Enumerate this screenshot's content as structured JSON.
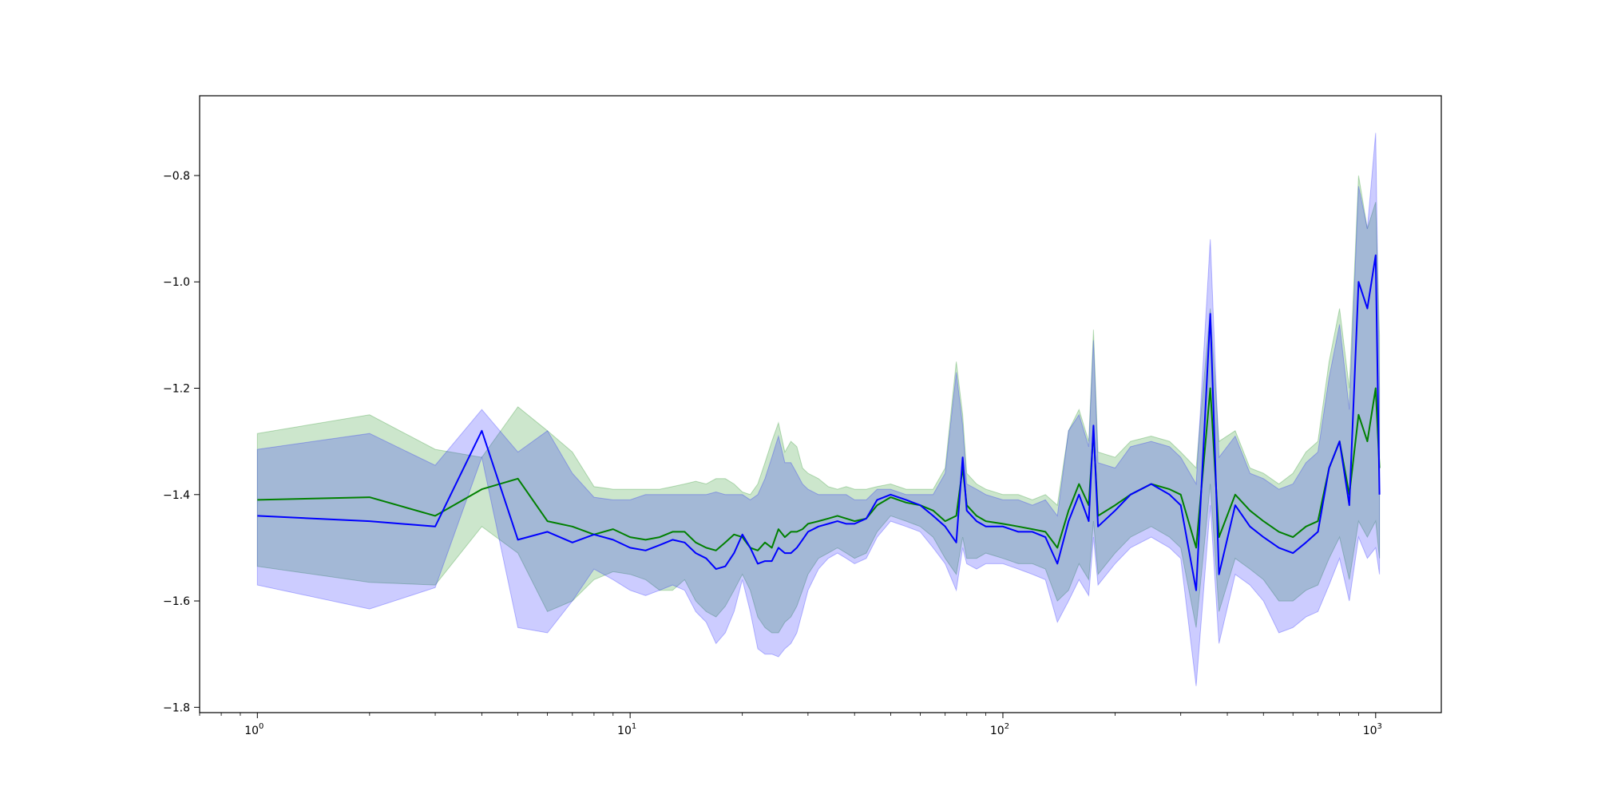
{
  "chart_data": {
    "type": "line",
    "title": "",
    "xlabel": "",
    "ylabel": "",
    "x_scale": "log",
    "xlim": [
      0.7,
      1500
    ],
    "ylim": [
      -1.81,
      -0.65
    ],
    "grid": false,
    "legend": "none",
    "x_ticks": [
      {
        "value": 1,
        "base": "10",
        "exp": "0"
      },
      {
        "value": 10,
        "base": "10",
        "exp": "1"
      },
      {
        "value": 100,
        "base": "10",
        "exp": "2"
      },
      {
        "value": 1000,
        "base": "10",
        "exp": "3"
      }
    ],
    "y_ticks": [
      {
        "value": -0.8,
        "label": "−0.8"
      },
      {
        "value": -1.0,
        "label": "−1.0"
      },
      {
        "value": -1.2,
        "label": "−1.2"
      },
      {
        "value": -1.4,
        "label": "−1.4"
      },
      {
        "value": -1.6,
        "label": "−1.6"
      },
      {
        "value": -1.8,
        "label": "−1.8"
      }
    ],
    "series": [
      {
        "color": "#008000",
        "band_color": "#008000",
        "band_opacity": 0.2,
        "x": [
          1,
          2,
          3,
          4,
          5,
          6,
          7,
          8,
          9,
          10,
          11,
          12,
          13,
          14,
          15,
          16,
          17,
          18,
          19,
          20,
          21,
          22,
          23,
          24,
          25,
          26,
          27,
          28,
          29,
          30,
          32,
          34,
          36,
          38,
          40,
          43,
          46,
          50,
          55,
          60,
          65,
          70,
          75,
          78,
          80,
          85,
          90,
          100,
          110,
          120,
          130,
          140,
          150,
          160,
          170,
          175,
          180,
          200,
          220,
          250,
          280,
          300,
          330,
          360,
          380,
          420,
          460,
          500,
          550,
          600,
          650,
          700,
          750,
          800,
          850,
          900,
          950,
          1000,
          1024
        ],
        "y": [
          -1.41,
          -1.405,
          -1.44,
          -1.39,
          -1.37,
          -1.45,
          -1.46,
          -1.475,
          -1.465,
          -1.48,
          -1.485,
          -1.48,
          -1.47,
          -1.47,
          -1.49,
          -1.5,
          -1.505,
          -1.49,
          -1.475,
          -1.48,
          -1.5,
          -1.505,
          -1.49,
          -1.5,
          -1.465,
          -1.48,
          -1.47,
          -1.47,
          -1.465,
          -1.455,
          -1.45,
          -1.445,
          -1.44,
          -1.445,
          -1.45,
          -1.445,
          -1.42,
          -1.405,
          -1.415,
          -1.42,
          -1.43,
          -1.45,
          -1.44,
          -1.35,
          -1.42,
          -1.44,
          -1.45,
          -1.455,
          -1.46,
          -1.465,
          -1.47,
          -1.5,
          -1.43,
          -1.38,
          -1.42,
          -1.28,
          -1.44,
          -1.42,
          -1.4,
          -1.38,
          -1.39,
          -1.4,
          -1.5,
          -1.2,
          -1.48,
          -1.4,
          -1.43,
          -1.45,
          -1.47,
          -1.48,
          -1.46,
          -1.45,
          -1.35,
          -1.3,
          -1.4,
          -1.25,
          -1.3,
          -1.2,
          -1.35
        ],
        "upper": [
          -1.285,
          -1.25,
          -1.315,
          -1.33,
          -1.235,
          -1.28,
          -1.32,
          -1.385,
          -1.39,
          -1.39,
          -1.39,
          -1.39,
          -1.385,
          -1.38,
          -1.375,
          -1.38,
          -1.37,
          -1.37,
          -1.38,
          -1.395,
          -1.4,
          -1.38,
          -1.34,
          -1.3,
          -1.265,
          -1.32,
          -1.3,
          -1.31,
          -1.35,
          -1.36,
          -1.37,
          -1.385,
          -1.39,
          -1.385,
          -1.39,
          -1.39,
          -1.385,
          -1.38,
          -1.39,
          -1.39,
          -1.39,
          -1.35,
          -1.15,
          -1.25,
          -1.36,
          -1.38,
          -1.39,
          -1.4,
          -1.4,
          -1.41,
          -1.4,
          -1.42,
          -1.28,
          -1.24,
          -1.3,
          -1.09,
          -1.32,
          -1.33,
          -1.3,
          -1.29,
          -1.3,
          -1.32,
          -1.35,
          -1.05,
          -1.3,
          -1.28,
          -1.35,
          -1.36,
          -1.38,
          -1.36,
          -1.32,
          -1.3,
          -1.15,
          -1.05,
          -1.2,
          -0.8,
          -0.9,
          -0.85,
          -1.1
        ],
        "lower": [
          -1.535,
          -1.565,
          -1.57,
          -1.46,
          -1.51,
          -1.62,
          -1.6,
          -1.56,
          -1.545,
          -1.55,
          -1.56,
          -1.58,
          -1.58,
          -1.56,
          -1.6,
          -1.62,
          -1.63,
          -1.61,
          -1.58,
          -1.55,
          -1.58,
          -1.63,
          -1.65,
          -1.66,
          -1.66,
          -1.64,
          -1.63,
          -1.61,
          -1.58,
          -1.55,
          -1.52,
          -1.51,
          -1.5,
          -1.51,
          -1.52,
          -1.51,
          -1.47,
          -1.44,
          -1.45,
          -1.46,
          -1.48,
          -1.52,
          -1.55,
          -1.48,
          -1.52,
          -1.52,
          -1.51,
          -1.52,
          -1.53,
          -1.53,
          -1.54,
          -1.6,
          -1.58,
          -1.53,
          -1.56,
          -1.45,
          -1.55,
          -1.51,
          -1.48,
          -1.46,
          -1.48,
          -1.5,
          -1.65,
          -1.38,
          -1.62,
          -1.52,
          -1.54,
          -1.56,
          -1.6,
          -1.6,
          -1.58,
          -1.57,
          -1.52,
          -1.48,
          -1.56,
          -1.45,
          -1.48,
          -1.45,
          -1.52
        ]
      },
      {
        "color": "#0000ff",
        "band_color": "#0000ff",
        "band_opacity": 0.2,
        "x": [
          1,
          2,
          3,
          4,
          5,
          6,
          7,
          8,
          9,
          10,
          11,
          12,
          13,
          14,
          15,
          16,
          17,
          18,
          19,
          20,
          21,
          22,
          23,
          24,
          25,
          26,
          27,
          28,
          29,
          30,
          32,
          34,
          36,
          38,
          40,
          43,
          46,
          50,
          55,
          60,
          65,
          70,
          75,
          78,
          80,
          85,
          90,
          100,
          110,
          120,
          130,
          140,
          150,
          160,
          170,
          175,
          180,
          200,
          220,
          250,
          280,
          300,
          330,
          360,
          380,
          420,
          460,
          500,
          550,
          600,
          650,
          700,
          750,
          800,
          850,
          900,
          950,
          1000,
          1024
        ],
        "y": [
          -1.44,
          -1.45,
          -1.46,
          -1.28,
          -1.485,
          -1.47,
          -1.49,
          -1.475,
          -1.485,
          -1.5,
          -1.505,
          -1.495,
          -1.485,
          -1.49,
          -1.51,
          -1.52,
          -1.54,
          -1.535,
          -1.51,
          -1.475,
          -1.5,
          -1.53,
          -1.525,
          -1.525,
          -1.5,
          -1.51,
          -1.51,
          -1.5,
          -1.485,
          -1.47,
          -1.46,
          -1.455,
          -1.45,
          -1.455,
          -1.455,
          -1.445,
          -1.41,
          -1.4,
          -1.41,
          -1.42,
          -1.44,
          -1.46,
          -1.49,
          -1.33,
          -1.43,
          -1.45,
          -1.46,
          -1.46,
          -1.47,
          -1.47,
          -1.48,
          -1.53,
          -1.45,
          -1.4,
          -1.45,
          -1.27,
          -1.46,
          -1.43,
          -1.4,
          -1.38,
          -1.4,
          -1.42,
          -1.58,
          -1.06,
          -1.55,
          -1.42,
          -1.46,
          -1.48,
          -1.5,
          -1.51,
          -1.49,
          -1.47,
          -1.35,
          -1.3,
          -1.42,
          -1.0,
          -1.05,
          -0.95,
          -1.4
        ],
        "upper": [
          -1.315,
          -1.285,
          -1.345,
          -1.24,
          -1.32,
          -1.28,
          -1.36,
          -1.405,
          -1.41,
          -1.41,
          -1.4,
          -1.4,
          -1.4,
          -1.4,
          -1.4,
          -1.4,
          -1.395,
          -1.4,
          -1.4,
          -1.4,
          -1.41,
          -1.4,
          -1.37,
          -1.33,
          -1.29,
          -1.34,
          -1.34,
          -1.36,
          -1.38,
          -1.39,
          -1.4,
          -1.4,
          -1.4,
          -1.4,
          -1.41,
          -1.41,
          -1.39,
          -1.39,
          -1.4,
          -1.4,
          -1.4,
          -1.36,
          -1.17,
          -1.27,
          -1.38,
          -1.39,
          -1.4,
          -1.41,
          -1.41,
          -1.42,
          -1.41,
          -1.44,
          -1.28,
          -1.25,
          -1.31,
          -1.11,
          -1.34,
          -1.35,
          -1.31,
          -1.3,
          -1.31,
          -1.33,
          -1.38,
          -0.92,
          -1.33,
          -1.29,
          -1.36,
          -1.37,
          -1.39,
          -1.38,
          -1.34,
          -1.32,
          -1.18,
          -1.08,
          -1.24,
          -0.82,
          -0.9,
          -0.72,
          -1.2
        ],
        "lower": [
          -1.57,
          -1.615,
          -1.575,
          -1.33,
          -1.65,
          -1.66,
          -1.6,
          -1.54,
          -1.56,
          -1.58,
          -1.59,
          -1.58,
          -1.57,
          -1.58,
          -1.62,
          -1.64,
          -1.68,
          -1.66,
          -1.62,
          -1.56,
          -1.62,
          -1.69,
          -1.7,
          -1.7,
          -1.705,
          -1.69,
          -1.68,
          -1.66,
          -1.62,
          -1.58,
          -1.54,
          -1.52,
          -1.51,
          -1.52,
          -1.53,
          -1.52,
          -1.48,
          -1.45,
          -1.46,
          -1.47,
          -1.5,
          -1.53,
          -1.58,
          -1.5,
          -1.53,
          -1.54,
          -1.53,
          -1.53,
          -1.54,
          -1.55,
          -1.56,
          -1.64,
          -1.6,
          -1.56,
          -1.59,
          -1.48,
          -1.57,
          -1.53,
          -1.5,
          -1.48,
          -1.5,
          -1.52,
          -1.76,
          -1.42,
          -1.68,
          -1.55,
          -1.57,
          -1.6,
          -1.66,
          -1.65,
          -1.63,
          -1.62,
          -1.57,
          -1.52,
          -1.6,
          -1.48,
          -1.52,
          -1.5,
          -1.55
        ]
      }
    ]
  }
}
